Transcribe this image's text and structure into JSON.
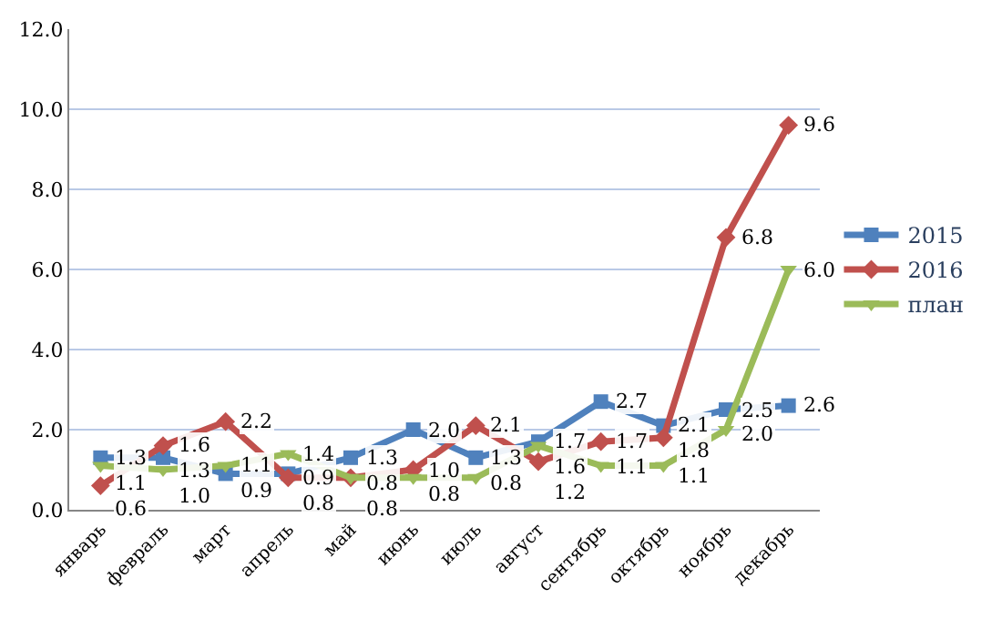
{
  "chart_data": {
    "type": "line",
    "categories": [
      "январь",
      "февраль",
      "март",
      "апрель",
      "май",
      "июнь",
      "июль",
      "август",
      "сентябрь",
      "октябрь",
      "ноябрь",
      "декабрь"
    ],
    "series": [
      {
        "name": "2015",
        "color": "#4f81bd",
        "marker": "square",
        "values": [
          1.3,
          1.3,
          0.9,
          0.9,
          1.3,
          2.0,
          1.3,
          1.7,
          2.7,
          2.1,
          2.5,
          2.6
        ],
        "value_labels": [
          "1.3",
          "1.3",
          "0.9",
          "0.9",
          "1.3",
          "2.0",
          "1.3",
          "1.7",
          "2.7",
          "2.1",
          "2.5",
          "2.6"
        ]
      },
      {
        "name": "2016",
        "color": "#c0504d",
        "marker": "diamond",
        "values": [
          0.6,
          1.6,
          2.2,
          0.8,
          0.8,
          1.0,
          2.1,
          1.2,
          1.7,
          1.8,
          6.8,
          9.6
        ],
        "value_labels": [
          "0.6",
          "1.6",
          "2.2",
          "0.8",
          "0.8",
          "1.0",
          "2.1",
          "1.2",
          "1.7",
          "1.8",
          "6.8",
          "9.6"
        ]
      },
      {
        "name": "план",
        "color": "#9bbb59",
        "marker": "triangle",
        "values": [
          1.1,
          1.0,
          1.1,
          1.4,
          0.8,
          0.8,
          0.8,
          1.6,
          1.1,
          1.1,
          2.0,
          6.0
        ],
        "value_labels": [
          "1.1",
          "1.0",
          "1.1",
          "1.4",
          "0.8",
          "0.8",
          "0.8",
          "1.6",
          "1.1",
          "1.1",
          "2.0",
          "6.0"
        ]
      }
    ],
    "ylim": [
      0,
      12
    ],
    "yticks": [
      {
        "value": 0,
        "label": "0.0"
      },
      {
        "value": 2,
        "label": "2.0"
      },
      {
        "value": 4,
        "label": "4.0"
      },
      {
        "value": 6,
        "label": "6.0"
      },
      {
        "value": 8,
        "label": "8.0"
      },
      {
        "value": 10,
        "label": "10.0"
      },
      {
        "value": 12,
        "label": "12.0"
      }
    ],
    "grid": "y",
    "legend": "right",
    "line_style": "solid"
  }
}
